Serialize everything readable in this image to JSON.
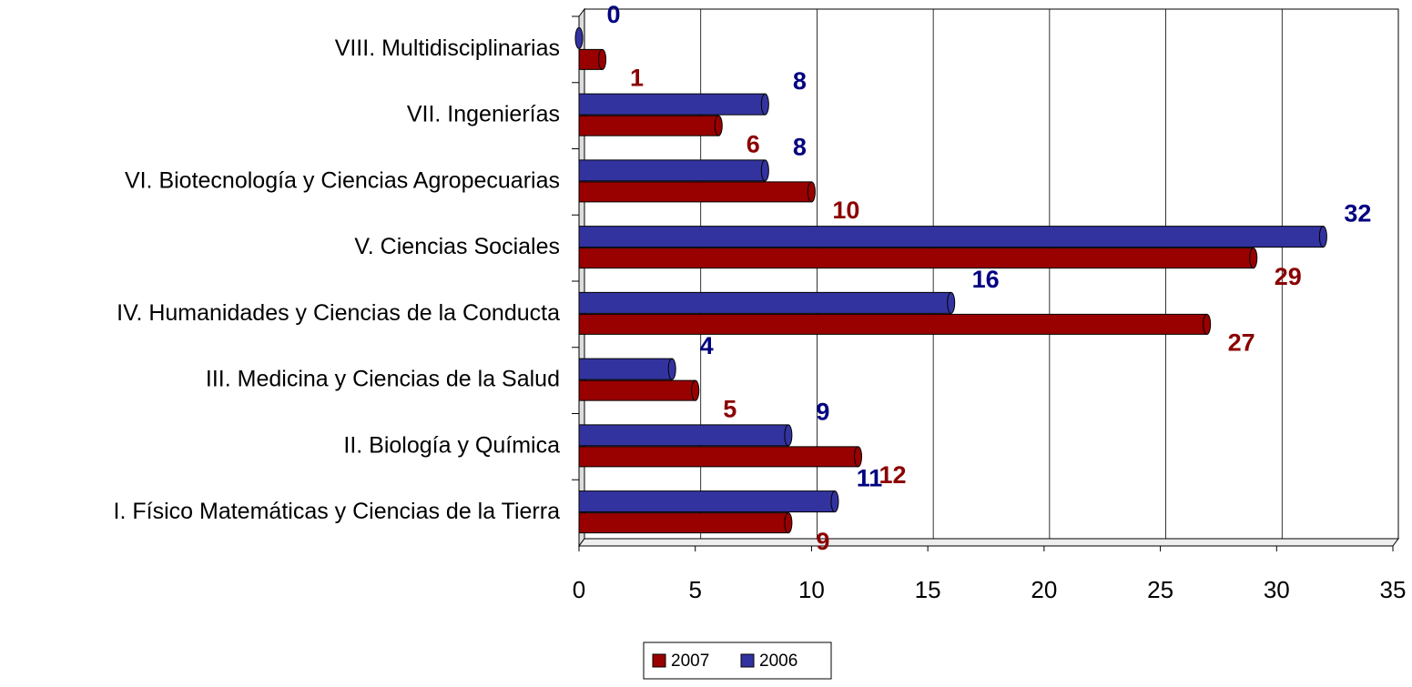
{
  "chart_data": {
    "type": "bar",
    "orientation": "horizontal",
    "categories": [
      "VIII. Multidisciplinarias",
      "VII. Ingenierías",
      "VI. Biotecnología y Ciencias Agropecuarias",
      "V. Ciencias Sociales",
      "IV. Humanidades y Ciencias de la Conducta",
      "III. Medicina y Ciencias de la Salud",
      "II. Biología y Química",
      "I. Físico Matemáticas y Ciencias de la Tierra"
    ],
    "series": [
      {
        "name": "2007",
        "color": "#990000",
        "values": [
          1,
          6,
          10,
          29,
          27,
          5,
          12,
          9
        ]
      },
      {
        "name": "2006",
        "color": "#3333a0",
        "values": [
          0,
          8,
          8,
          32,
          16,
          4,
          9,
          11
        ]
      }
    ],
    "xlim": [
      0,
      35
    ],
    "xticks": [
      0,
      5,
      10,
      15,
      20,
      25,
      30,
      35
    ],
    "grid": true,
    "legend": "bottom"
  }
}
